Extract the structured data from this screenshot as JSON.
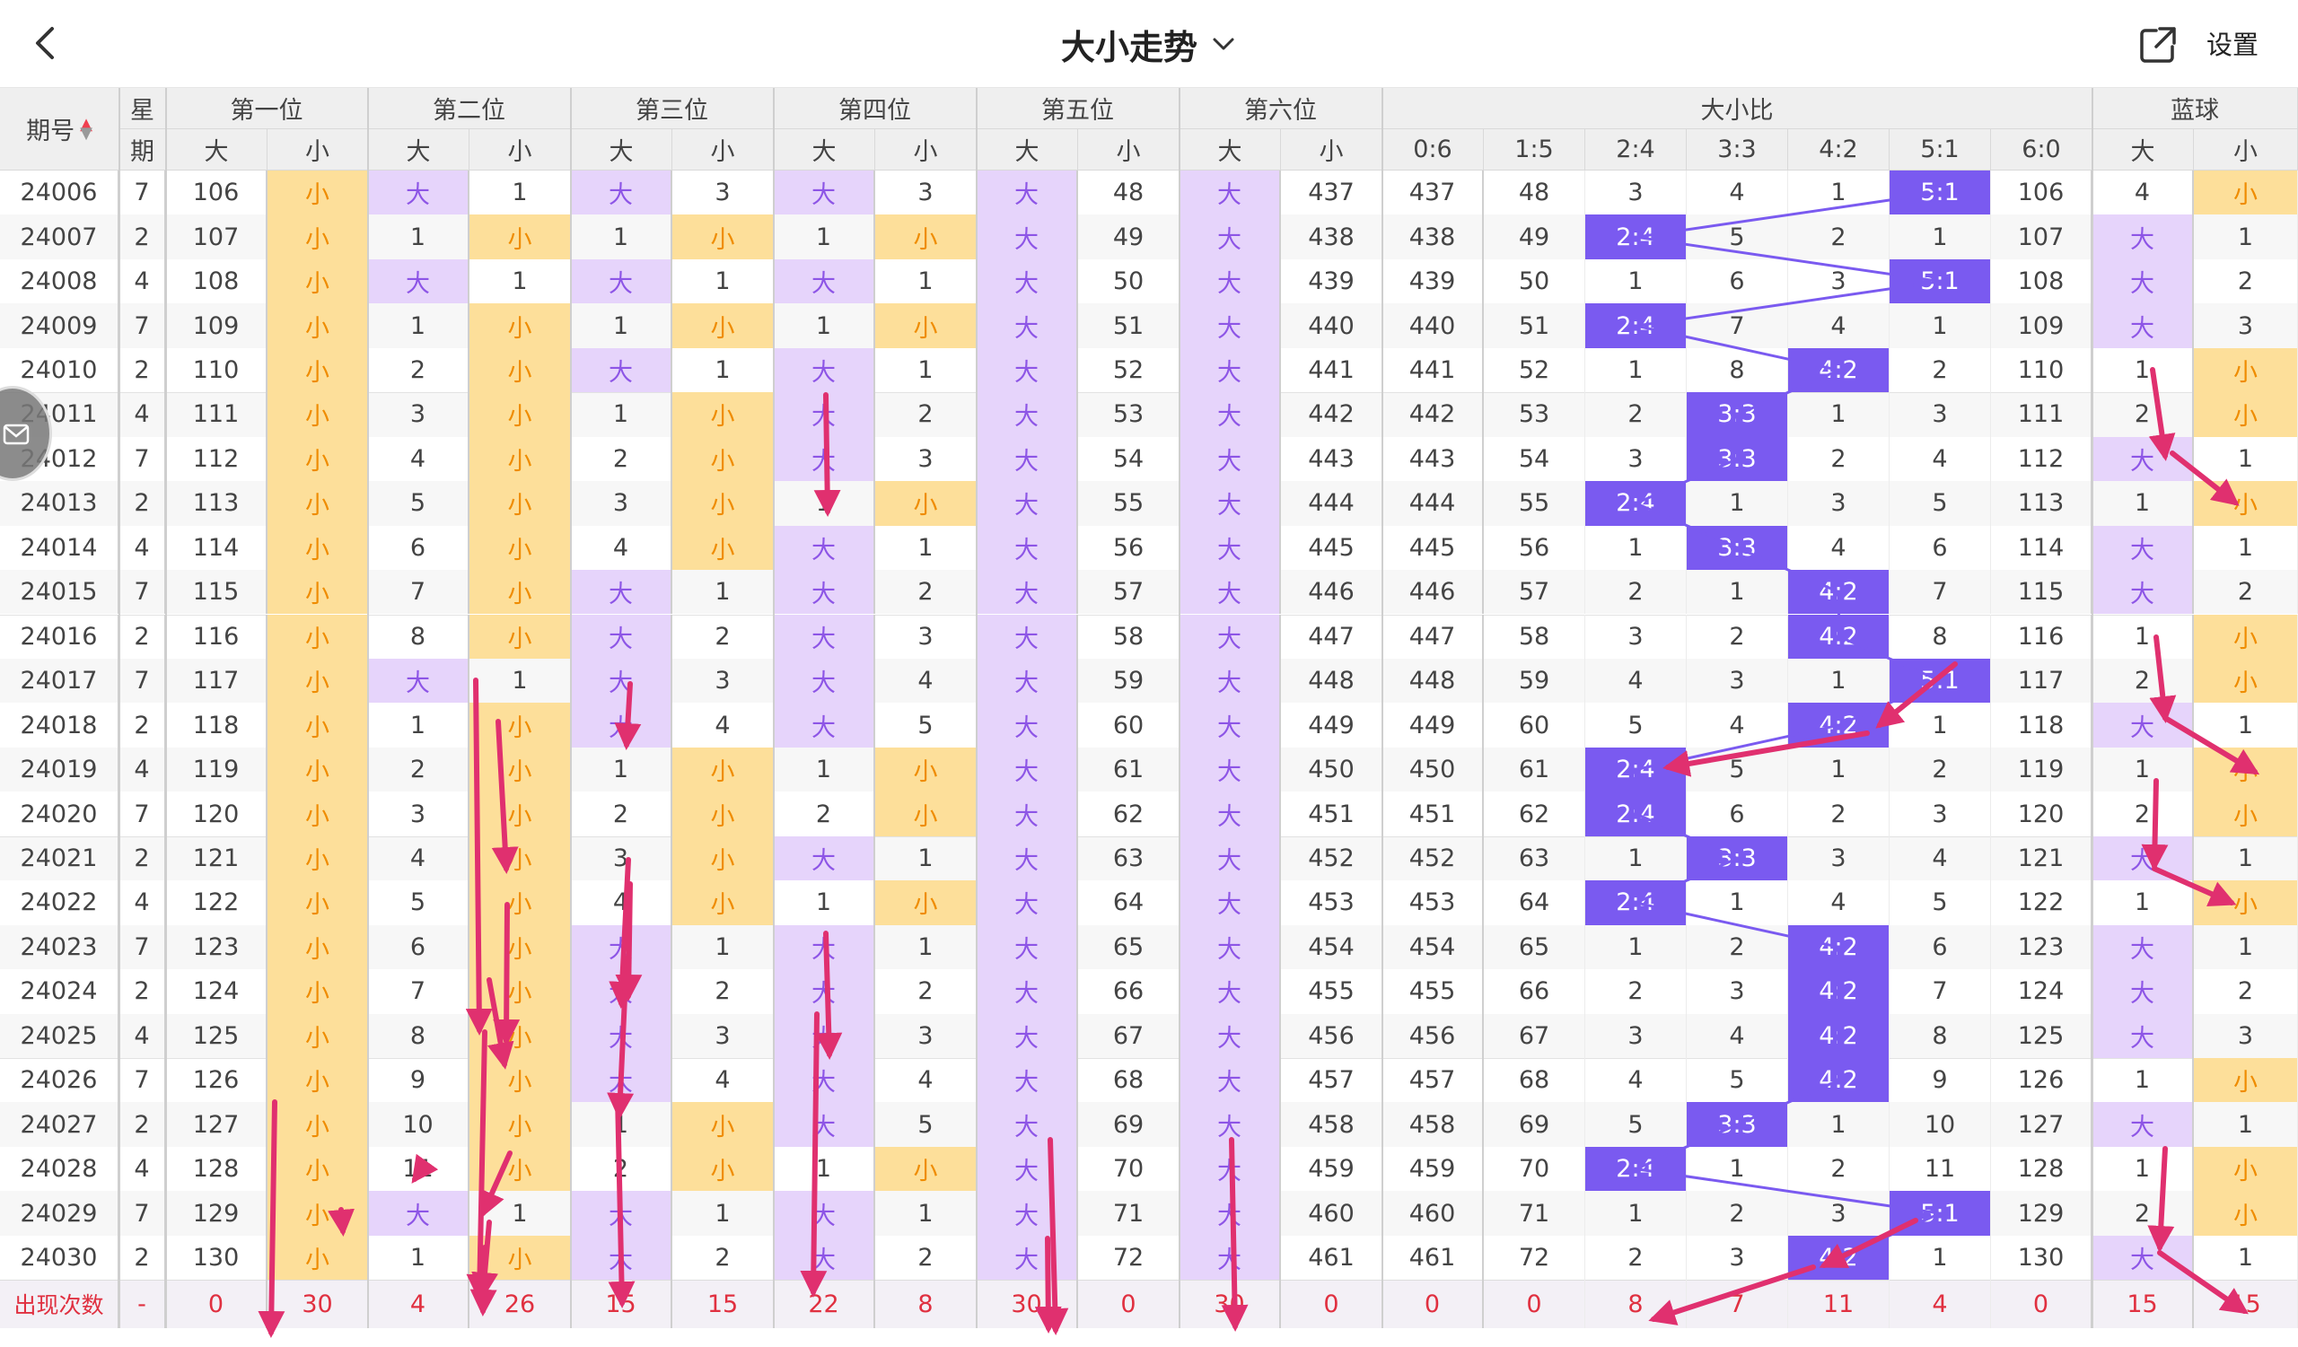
{
  "header": {
    "title": "大小走势",
    "settings_label": "设置"
  },
  "columns": {
    "period": "期号",
    "week_top": "星",
    "week_bottom": "期",
    "positions": [
      "第一位",
      "第二位",
      "第三位",
      "第四位",
      "第五位",
      "第六位"
    ],
    "ratio_group": "大小比",
    "blue_group": "蓝球",
    "big": "大",
    "small": "小",
    "ratios": [
      "0:6",
      "1:5",
      "2:4",
      "3:3",
      "4:2",
      "5:1",
      "6:0"
    ]
  },
  "rows": [
    {
      "p": "24006",
      "w": "7",
      "v": [
        "106",
        "小",
        "大",
        "1",
        "大",
        "3",
        "大",
        "3",
        "大",
        "48",
        "大",
        "437",
        "437",
        "48",
        "3",
        "4",
        "1",
        "5:1",
        "106",
        "4",
        "小"
      ]
    },
    {
      "p": "24007",
      "w": "2",
      "v": [
        "107",
        "小",
        "1",
        "小",
        "1",
        "小",
        "1",
        "小",
        "大",
        "49",
        "大",
        "438",
        "438",
        "49",
        "2:4",
        "5",
        "2",
        "1",
        "107",
        "大",
        "1"
      ]
    },
    {
      "p": "24008",
      "w": "4",
      "v": [
        "108",
        "小",
        "大",
        "1",
        "大",
        "1",
        "大",
        "1",
        "大",
        "50",
        "大",
        "439",
        "439",
        "50",
        "1",
        "6",
        "3",
        "5:1",
        "108",
        "大",
        "2"
      ]
    },
    {
      "p": "24009",
      "w": "7",
      "v": [
        "109",
        "小",
        "1",
        "小",
        "1",
        "小",
        "1",
        "小",
        "大",
        "51",
        "大",
        "440",
        "440",
        "51",
        "2:4",
        "7",
        "4",
        "1",
        "109",
        "大",
        "3"
      ]
    },
    {
      "p": "24010",
      "w": "2",
      "v": [
        "110",
        "小",
        "2",
        "小",
        "大",
        "1",
        "大",
        "1",
        "大",
        "52",
        "大",
        "441",
        "441",
        "52",
        "1",
        "8",
        "4:2",
        "2",
        "110",
        "1",
        "小"
      ]
    },
    {
      "p": "24011",
      "w": "4",
      "v": [
        "111",
        "小",
        "3",
        "小",
        "1",
        "小",
        "大",
        "2",
        "大",
        "53",
        "大",
        "442",
        "442",
        "53",
        "2",
        "3:3",
        "1",
        "3",
        "111",
        "2",
        "小"
      ]
    },
    {
      "p": "24012",
      "w": "7",
      "v": [
        "112",
        "小",
        "4",
        "小",
        "2",
        "小",
        "大",
        "3",
        "大",
        "54",
        "大",
        "443",
        "443",
        "54",
        "3",
        "3:3",
        "2",
        "4",
        "112",
        "大",
        "1"
      ]
    },
    {
      "p": "24013",
      "w": "2",
      "v": [
        "113",
        "小",
        "5",
        "小",
        "3",
        "小",
        "1",
        "小",
        "大",
        "55",
        "大",
        "444",
        "444",
        "55",
        "2:4",
        "1",
        "3",
        "5",
        "113",
        "1",
        "小"
      ]
    },
    {
      "p": "24014",
      "w": "4",
      "v": [
        "114",
        "小",
        "6",
        "小",
        "4",
        "小",
        "大",
        "1",
        "大",
        "56",
        "大",
        "445",
        "445",
        "56",
        "1",
        "3:3",
        "4",
        "6",
        "114",
        "大",
        "1"
      ]
    },
    {
      "p": "24015",
      "w": "7",
      "v": [
        "115",
        "小",
        "7",
        "小",
        "大",
        "1",
        "大",
        "2",
        "大",
        "57",
        "大",
        "446",
        "446",
        "57",
        "2",
        "1",
        "4:2",
        "7",
        "115",
        "大",
        "2"
      ]
    },
    {
      "p": "24016",
      "w": "2",
      "v": [
        "116",
        "小",
        "8",
        "小",
        "大",
        "2",
        "大",
        "3",
        "大",
        "58",
        "大",
        "447",
        "447",
        "58",
        "3",
        "2",
        "4:2",
        "8",
        "116",
        "1",
        "小"
      ]
    },
    {
      "p": "24017",
      "w": "7",
      "v": [
        "117",
        "小",
        "大",
        "1",
        "大",
        "3",
        "大",
        "4",
        "大",
        "59",
        "大",
        "448",
        "448",
        "59",
        "4",
        "3",
        "1",
        "5:1",
        "117",
        "2",
        "小"
      ]
    },
    {
      "p": "24018",
      "w": "2",
      "v": [
        "118",
        "小",
        "1",
        "小",
        "大",
        "4",
        "大",
        "5",
        "大",
        "60",
        "大",
        "449",
        "449",
        "60",
        "5",
        "4",
        "4:2",
        "1",
        "118",
        "大",
        "1"
      ]
    },
    {
      "p": "24019",
      "w": "4",
      "v": [
        "119",
        "小",
        "2",
        "小",
        "1",
        "小",
        "1",
        "小",
        "大",
        "61",
        "大",
        "450",
        "450",
        "61",
        "2:4",
        "5",
        "1",
        "2",
        "119",
        "1",
        "小"
      ]
    },
    {
      "p": "24020",
      "w": "7",
      "v": [
        "120",
        "小",
        "3",
        "小",
        "2",
        "小",
        "2",
        "小",
        "大",
        "62",
        "大",
        "451",
        "451",
        "62",
        "2:4",
        "6",
        "2",
        "3",
        "120",
        "2",
        "小"
      ]
    },
    {
      "p": "24021",
      "w": "2",
      "v": [
        "121",
        "小",
        "4",
        "小",
        "3",
        "小",
        "大",
        "1",
        "大",
        "63",
        "大",
        "452",
        "452",
        "63",
        "1",
        "3:3",
        "3",
        "4",
        "121",
        "大",
        "1"
      ]
    },
    {
      "p": "24022",
      "w": "4",
      "v": [
        "122",
        "小",
        "5",
        "小",
        "4",
        "小",
        "1",
        "小",
        "大",
        "64",
        "大",
        "453",
        "453",
        "64",
        "2:4",
        "1",
        "4",
        "5",
        "122",
        "1",
        "小"
      ]
    },
    {
      "p": "24023",
      "w": "7",
      "v": [
        "123",
        "小",
        "6",
        "小",
        "大",
        "1",
        "大",
        "1",
        "大",
        "65",
        "大",
        "454",
        "454",
        "65",
        "1",
        "2",
        "4:2",
        "6",
        "123",
        "大",
        "1"
      ]
    },
    {
      "p": "24024",
      "w": "2",
      "v": [
        "124",
        "小",
        "7",
        "小",
        "大",
        "2",
        "大",
        "2",
        "大",
        "66",
        "大",
        "455",
        "455",
        "66",
        "2",
        "3",
        "4:2",
        "7",
        "124",
        "大",
        "2"
      ]
    },
    {
      "p": "24025",
      "w": "4",
      "v": [
        "125",
        "小",
        "8",
        "小",
        "大",
        "3",
        "大",
        "3",
        "大",
        "67",
        "大",
        "456",
        "456",
        "67",
        "3",
        "4",
        "4:2",
        "8",
        "125",
        "大",
        "3"
      ]
    },
    {
      "p": "24026",
      "w": "7",
      "v": [
        "126",
        "小",
        "9",
        "小",
        "大",
        "4",
        "大",
        "4",
        "大",
        "68",
        "大",
        "457",
        "457",
        "68",
        "4",
        "5",
        "4:2",
        "9",
        "126",
        "1",
        "小"
      ]
    },
    {
      "p": "24027",
      "w": "2",
      "v": [
        "127",
        "小",
        "10",
        "小",
        "1",
        "小",
        "大",
        "5",
        "大",
        "69",
        "大",
        "458",
        "458",
        "69",
        "5",
        "3:3",
        "1",
        "10",
        "127",
        "大",
        "1"
      ]
    },
    {
      "p": "24028",
      "w": "4",
      "v": [
        "128",
        "小",
        "11",
        "小",
        "2",
        "小",
        "1",
        "小",
        "大",
        "70",
        "大",
        "459",
        "459",
        "70",
        "2:4",
        "1",
        "2",
        "11",
        "128",
        "1",
        "小"
      ]
    },
    {
      "p": "24029",
      "w": "7",
      "v": [
        "129",
        "小",
        "大",
        "1",
        "大",
        "1",
        "大",
        "1",
        "大",
        "71",
        "大",
        "460",
        "460",
        "71",
        "1",
        "2",
        "3",
        "5:1",
        "129",
        "2",
        "小"
      ]
    },
    {
      "p": "24030",
      "w": "2",
      "v": [
        "130",
        "小",
        "1",
        "小",
        "大",
        "2",
        "大",
        "2",
        "大",
        "72",
        "大",
        "461",
        "461",
        "72",
        "2",
        "3",
        "4:2",
        "1",
        "130",
        "大",
        "1"
      ]
    }
  ],
  "footer": {
    "label": "出现次数",
    "week": "-",
    "values": [
      "0",
      "30",
      "4",
      "26",
      "15",
      "15",
      "22",
      "8",
      "30",
      "0",
      "30",
      "0",
      "0",
      "0",
      "8",
      "7",
      "11",
      "4",
      "0",
      "15",
      "15"
    ]
  }
}
